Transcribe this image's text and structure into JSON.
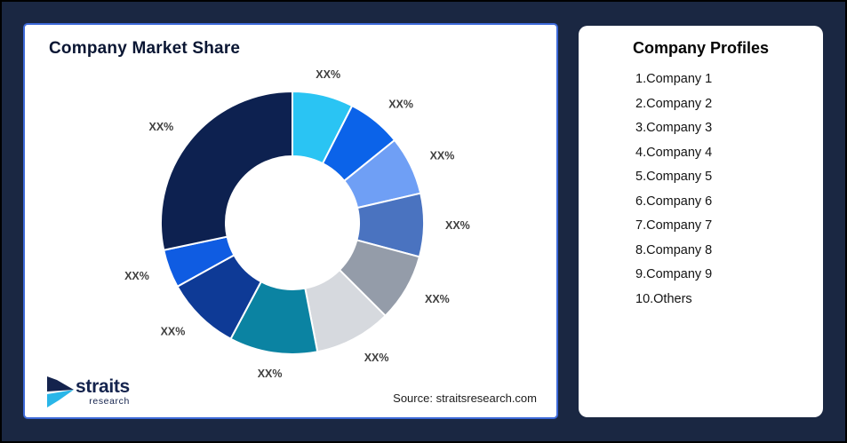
{
  "page": {
    "background_color": "#1a2742",
    "card_border_color": "#3c69d8"
  },
  "chart_card": {
    "title": "Company Market Share",
    "source": "Source: straitsresearch.com"
  },
  "chart_data": {
    "type": "pie",
    "subtype": "donut",
    "title": "Company Market Share",
    "start_angle_deg": 0,
    "direction": "clockwise",
    "inner_radius_ratio": 0.51,
    "label_note": "all slice labels are masked placeholders",
    "segments": [
      {
        "label": "XX%",
        "angle_deg": 27,
        "color": "#2ac4f3"
      },
      {
        "label": "XX%",
        "angle_deg": 24,
        "color": "#0b63e9"
      },
      {
        "label": "XX%",
        "angle_deg": 26,
        "color": "#6f9ff5"
      },
      {
        "label": "XX%",
        "angle_deg": 28,
        "color": "#4a73c0"
      },
      {
        "label": "XX%",
        "angle_deg": 30,
        "color": "#949ca9"
      },
      {
        "label": "XX%",
        "angle_deg": 34,
        "color": "#d6d9de"
      },
      {
        "label": "XX%",
        "angle_deg": 39,
        "color": "#0b83a2"
      },
      {
        "label": "XX%",
        "angle_deg": 33,
        "color": "#0e3a96"
      },
      {
        "label": "XX%",
        "angle_deg": 17,
        "color": "#0f5ce2"
      },
      {
        "label": "XX%",
        "angle_deg": 102,
        "color": "#0d2150"
      }
    ],
    "label_color": "#3f3f3f"
  },
  "profiles_card": {
    "title": "Company Profiles",
    "items": [
      "1.Company 1",
      "2.Company 2",
      "3.Company 3",
      "4.Company 4",
      "5.Company 5",
      "6.Company 6",
      "7.Company 7",
      "8.Company 8",
      "9.Company 9",
      "10.Others"
    ]
  },
  "logo": {
    "name": "straits",
    "subtext": "research",
    "navy": "#14234d",
    "cyan": "#29b6e8"
  }
}
